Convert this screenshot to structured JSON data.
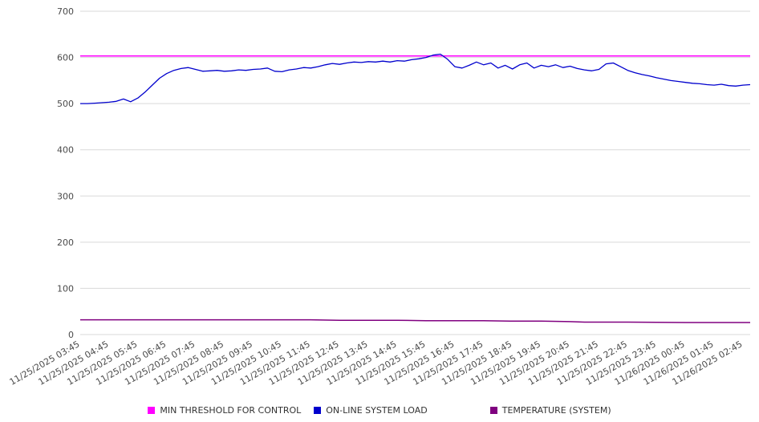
{
  "chart_data": {
    "type": "line",
    "title": "",
    "xlabel": "",
    "ylabel": "",
    "ylim": [
      0,
      700
    ],
    "y_ticks": [
      0,
      100,
      200,
      300,
      400,
      500,
      600,
      700
    ],
    "x_range": [
      0,
      1395
    ],
    "x_unit": "minutes since 11/25/2025 03:45",
    "grid": "horizontal",
    "legend_position": "bottom",
    "x_tick_minutes": [
      0,
      60,
      120,
      180,
      240,
      300,
      360,
      420,
      480,
      540,
      600,
      660,
      720,
      780,
      840,
      900,
      960,
      1020,
      1080,
      1140,
      1200,
      1260,
      1320,
      1380
    ],
    "x_tick_labels": [
      "11/25/2025 03:45",
      "11/25/2025 04:45",
      "11/25/2025 05:45",
      "11/25/2025 06:45",
      "11/25/2025 07:45",
      "11/25/2025 08:45",
      "11/25/2025 09:45",
      "11/25/2025 10:45",
      "11/25/2025 11:45",
      "11/25/2025 12:45",
      "11/25/2025 13:45",
      "11/25/2025 14:45",
      "11/25/2025 15:45",
      "11/25/2025 16:45",
      "11/25/2025 17:45",
      "11/25/2025 18:45",
      "11/25/2025 19:45",
      "11/25/2025 20:45",
      "11/25/2025 21:45",
      "11/25/2025 22:45",
      "11/25/2025 23:45",
      "11/26/2025 00:45",
      "11/26/2025 01:45",
      "11/26/2025 02:45"
    ],
    "series": [
      {
        "name": "MIN THRESHOLD FOR CONTROL",
        "color": "#ff00ff",
        "width": 1.5,
        "points": [
          [
            0,
            603
          ],
          [
            1395,
            603
          ]
        ]
      },
      {
        "name": "ON-LINE SYSTEM LOAD",
        "color": "#0000cd",
        "width": 1.3,
        "x_step": 15,
        "values": [
          500,
          500,
          501,
          502,
          503,
          505,
          510,
          504,
          512,
          525,
          540,
          555,
          565,
          572,
          576,
          578,
          574,
          570,
          571,
          572,
          570,
          571,
          573,
          572,
          574,
          575,
          577,
          570,
          569,
          573,
          575,
          578,
          577,
          580,
          584,
          587,
          585,
          588,
          590,
          589,
          591,
          590,
          592,
          590,
          593,
          592,
          595,
          597,
          600,
          605,
          607,
          596,
          580,
          577,
          583,
          590,
          584,
          588,
          577,
          583,
          575,
          584,
          588,
          577,
          583,
          580,
          584,
          578,
          581,
          576,
          573,
          571,
          574,
          586,
          588,
          580,
          572,
          567,
          563,
          560,
          556,
          553,
          550,
          548,
          546,
          544,
          543,
          541,
          540,
          542,
          539,
          538,
          540,
          541
        ]
      },
      {
        "name": "TEMPERATURE (SYSTEM)",
        "color": "#800080",
        "width": 1.5,
        "points": [
          [
            0,
            32
          ],
          [
            180,
            32
          ],
          [
            360,
            32
          ],
          [
            480,
            32
          ],
          [
            540,
            31
          ],
          [
            600,
            31
          ],
          [
            660,
            31
          ],
          [
            720,
            30
          ],
          [
            780,
            30
          ],
          [
            840,
            30
          ],
          [
            900,
            29
          ],
          [
            960,
            29
          ],
          [
            1020,
            28
          ],
          [
            1050,
            27
          ],
          [
            1140,
            27
          ],
          [
            1260,
            26
          ],
          [
            1395,
            26
          ]
        ]
      }
    ],
    "legend": [
      {
        "label": "MIN THRESHOLD FOR CONTROL",
        "color": "#ff00ff"
      },
      {
        "label": "ON-LINE SYSTEM LOAD",
        "color": "#0000cd"
      },
      {
        "label": "TEMPERATURE (SYSTEM)",
        "color": "#800080"
      }
    ]
  }
}
